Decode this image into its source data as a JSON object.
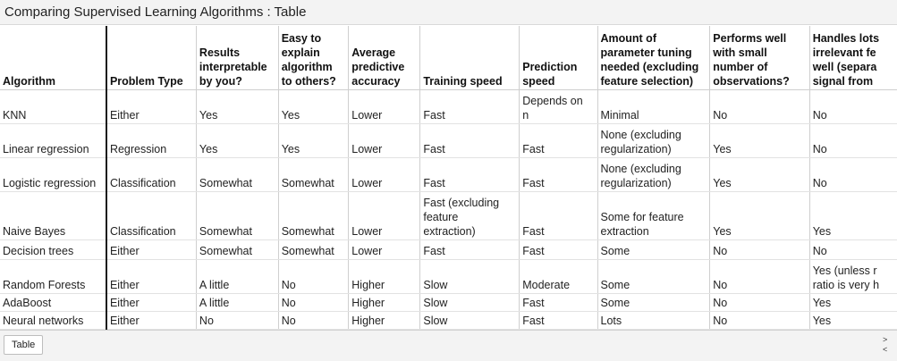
{
  "window": {
    "title": "Comparing Supervised Learning Algorithms : Table"
  },
  "table": {
    "columns": [
      [
        "Algorithm"
      ],
      [
        "Problem Type"
      ],
      [
        "Results",
        "interpretable",
        "by you?"
      ],
      [
        "Easy to",
        "explain",
        "algorithm",
        "to others?"
      ],
      [
        "Average",
        "predictive",
        "accuracy"
      ],
      [
        "Training speed"
      ],
      [
        "Prediction",
        "speed"
      ],
      [
        "Amount of",
        "parameter tuning",
        "needed (excluding",
        "feature selection)"
      ],
      [
        "Performs well",
        "with small",
        "number of",
        "observations?"
      ],
      [
        "Handles lots",
        "irrelevant fe",
        "well (separa",
        "signal from"
      ]
    ],
    "rows": [
      [
        [
          "KNN"
        ],
        [
          "Either"
        ],
        [
          "Yes"
        ],
        [
          "Yes"
        ],
        [
          "Lower"
        ],
        [
          "Fast"
        ],
        [
          "Depends on",
          "n"
        ],
        [
          "Minimal"
        ],
        [
          "No"
        ],
        [
          "No"
        ]
      ],
      [
        [
          "Linear regression"
        ],
        [
          "Regression"
        ],
        [
          "Yes"
        ],
        [
          "Yes"
        ],
        [
          "Lower"
        ],
        [
          "Fast"
        ],
        [
          "Fast"
        ],
        [
          "None (excluding",
          "regularization)"
        ],
        [
          "Yes"
        ],
        [
          "No"
        ]
      ],
      [
        [
          "Logistic regression"
        ],
        [
          "Classification"
        ],
        [
          "Somewhat"
        ],
        [
          "Somewhat"
        ],
        [
          "Lower"
        ],
        [
          "Fast"
        ],
        [
          "Fast"
        ],
        [
          "None (excluding",
          "regularization)"
        ],
        [
          "Yes"
        ],
        [
          "No"
        ]
      ],
      [
        [
          "Naive Bayes"
        ],
        [
          "Classification"
        ],
        [
          "Somewhat"
        ],
        [
          "Somewhat"
        ],
        [
          "Lower"
        ],
        [
          "Fast (excluding",
          "feature",
          "extraction)"
        ],
        [
          "Fast"
        ],
        [
          "Some for feature",
          "extraction"
        ],
        [
          "Yes"
        ],
        [
          "Yes"
        ]
      ],
      [
        [
          "Decision trees"
        ],
        [
          "Either"
        ],
        [
          "Somewhat"
        ],
        [
          "Somewhat"
        ],
        [
          "Lower"
        ],
        [
          "Fast"
        ],
        [
          "Fast"
        ],
        [
          "Some"
        ],
        [
          "No"
        ],
        [
          "No"
        ]
      ],
      [
        [
          "Random Forests"
        ],
        [
          "Either"
        ],
        [
          "A little"
        ],
        [
          "No"
        ],
        [
          "Higher"
        ],
        [
          "Slow"
        ],
        [
          "Moderate"
        ],
        [
          "Some"
        ],
        [
          "No"
        ],
        [
          "Yes (unless r",
          "ratio is very h"
        ]
      ],
      [
        [
          "AdaBoost"
        ],
        [
          "Either"
        ],
        [
          "A little"
        ],
        [
          "No"
        ],
        [
          "Higher"
        ],
        [
          "Slow"
        ],
        [
          "Fast"
        ],
        [
          "Some"
        ],
        [
          "No"
        ],
        [
          "Yes"
        ]
      ],
      [
        [
          "Neural networks"
        ],
        [
          "Either"
        ],
        [
          "No"
        ],
        [
          "No"
        ],
        [
          "Higher"
        ],
        [
          "Slow"
        ],
        [
          "Fast"
        ],
        [
          "Lots"
        ],
        [
          "No"
        ],
        [
          "Yes"
        ]
      ]
    ]
  },
  "sheet_tabs": [
    "Table"
  ],
  "scroll_arrows": {
    "right": ">",
    "left": "<"
  }
}
